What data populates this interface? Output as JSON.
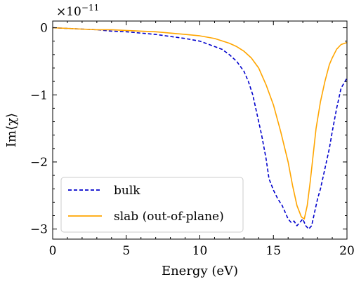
{
  "chart_data": {
    "type": "line",
    "title": "",
    "xlabel": "Energy (eV)",
    "ylabel": "Im⟨χ⟩",
    "y_multiplier": {
      "base": "×10",
      "exponent": "−11"
    },
    "xlim": [
      0,
      20
    ],
    "ylim": [
      -3.15,
      0.1
    ],
    "x_ticks": [
      0,
      5,
      10,
      15,
      20
    ],
    "x_tick_labels": [
      "0",
      "5",
      "10",
      "15",
      "20"
    ],
    "y_ticks": [
      0,
      -1,
      -2,
      -3
    ],
    "y_tick_labels": [
      "0",
      "−1",
      "−2",
      "−3"
    ],
    "x_minor_step": 1,
    "y_minor_step": 0.2,
    "grid": false,
    "legend_position": "lower-left",
    "series": [
      {
        "name": "bulk",
        "color": "#0000cc",
        "style": "dashed",
        "x": [
          0,
          1,
          2,
          3,
          4,
          5,
          6,
          7,
          8,
          9,
          10,
          10.5,
          11,
          11.5,
          12,
          12.5,
          13,
          13.3,
          13.6,
          13.9,
          14.2,
          14.5,
          14.7,
          15,
          15.3,
          15.6,
          15.8,
          16,
          16.2,
          16.4,
          16.6,
          16.8,
          17,
          17.2,
          17.4,
          17.6,
          17.8,
          18,
          18.2,
          18.5,
          18.8,
          19,
          19.3,
          19.6,
          20
        ],
        "y": [
          0,
          -0.01,
          -0.02,
          -0.03,
          -0.05,
          -0.06,
          -0.08,
          -0.1,
          -0.13,
          -0.16,
          -0.2,
          -0.24,
          -0.28,
          -0.32,
          -0.4,
          -0.5,
          -0.65,
          -0.8,
          -1.0,
          -1.3,
          -1.6,
          -1.95,
          -2.25,
          -2.42,
          -2.55,
          -2.65,
          -2.75,
          -2.85,
          -2.9,
          -2.88,
          -2.95,
          -2.9,
          -2.85,
          -2.95,
          -3.0,
          -2.95,
          -2.75,
          -2.55,
          -2.4,
          -2.1,
          -1.8,
          -1.55,
          -1.2,
          -0.9,
          -0.75
        ]
      },
      {
        "name": "slab (out-of-plane)",
        "color": "#ffa500",
        "style": "solid",
        "x": [
          0,
          1,
          2,
          3,
          4,
          5,
          6,
          7,
          8,
          9,
          10,
          11,
          12,
          12.5,
          13,
          13.5,
          14,
          14.5,
          15,
          15.5,
          16,
          16.3,
          16.6,
          16.9,
          17.1,
          17.3,
          17.5,
          17.7,
          17.9,
          18.2,
          18.5,
          18.8,
          19,
          19.3,
          19.6,
          20
        ],
        "y": [
          0,
          -0.01,
          -0.02,
          -0.03,
          -0.03,
          -0.04,
          -0.05,
          -0.06,
          -0.08,
          -0.1,
          -0.12,
          -0.16,
          -0.23,
          -0.28,
          -0.35,
          -0.45,
          -0.6,
          -0.85,
          -1.15,
          -1.55,
          -2.0,
          -2.35,
          -2.65,
          -2.82,
          -2.85,
          -2.65,
          -2.3,
          -1.9,
          -1.5,
          -1.1,
          -0.8,
          -0.55,
          -0.45,
          -0.32,
          -0.25,
          -0.22
        ]
      }
    ]
  }
}
